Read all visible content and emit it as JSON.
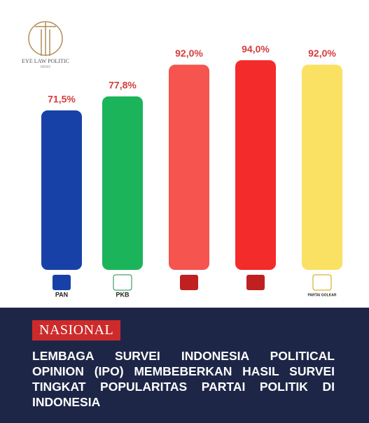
{
  "brand": {
    "name": "EYE LAW POLITIC",
    "sub": "NEWS"
  },
  "chart_data": {
    "type": "bar",
    "categories": [
      "PAN",
      "PKB",
      null,
      null,
      "PARTAI GOLKAR"
    ],
    "values": [
      71.5,
      77.8,
      92.0,
      94.0,
      92.0
    ],
    "value_labels": [
      "71,5%",
      "77,8%",
      "92,0%",
      "94,0%",
      "92,0%"
    ],
    "colors": [
      "#1841a8",
      "#1bb45a",
      "#f5544f",
      "#f42b2b",
      "#fbe163"
    ]
  },
  "tag": "NASIONAL",
  "headline": "LEMBAGA SURVEI INDONESIA POLITICAL OPINION (IPO) MEMBEBERKAN HASIL SURVEI TINGKAT POPULARITAS PARTAI POLITIK DI INDONESIA"
}
